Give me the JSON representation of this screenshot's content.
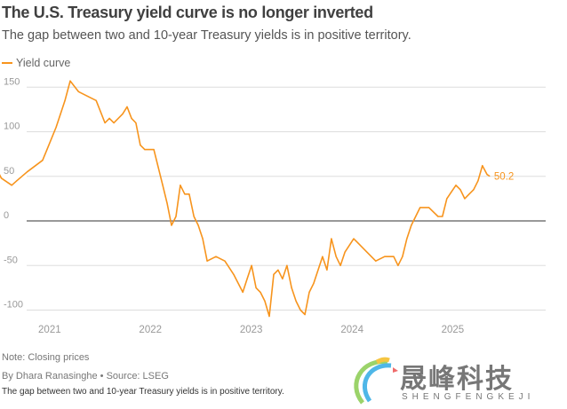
{
  "header": {
    "title": "The U.S. Treasury yield curve is no longer inverted",
    "subtitle": "The gap between two and 10-year Treasury yields is in positive territory."
  },
  "footer": {
    "note": "Note: Closing prices",
    "byline": "By Dhara Ranasinghe  • Source: LSEG",
    "caption": "The gap between two and 10-year Treasury yields is in positive territory."
  },
  "watermark": {
    "text": "晟峰科技",
    "sub": "SHENGFENGKEJI"
  },
  "colors": {
    "series": "#f7941d",
    "grid": "#dddddd",
    "zero_line": "#333333"
  },
  "chart_data": {
    "type": "line",
    "title": "The U.S. Treasury yield curve is no longer inverted",
    "xlabel": "",
    "ylabel": "",
    "xlim": [
      "2020-05-01",
      "2025-05-20"
    ],
    "ylim": [
      -110,
      160
    ],
    "yticks": [
      -100,
      -50,
      0,
      50,
      100,
      150
    ],
    "yticklabels": [
      "-100",
      "-50",
      "0",
      "50",
      "100",
      "150"
    ],
    "xticks": [
      "2021-07-01",
      "2022-07-01",
      "2023-07-01",
      "2024-07-01",
      "2025-07-01"
    ],
    "xticklabels": [
      "2021",
      "2022",
      "2023",
      "2024",
      "2025"
    ],
    "grid": true,
    "legend": "top-left",
    "end_label": "50.2",
    "series": [
      {
        "name": "Yield curve",
        "points": [
          [
            "2020-05-05",
            50
          ],
          [
            "2020-06-02",
            58
          ],
          [
            "2020-06-05",
            68
          ],
          [
            "2020-07-08",
            48
          ],
          [
            "2020-08-15",
            40
          ],
          [
            "2020-09-02",
            45
          ],
          [
            "2020-10-10",
            55
          ],
          [
            "2020-12-05",
            68
          ],
          [
            "2020-12-21",
            80
          ],
          [
            "2021-01-23",
            105
          ],
          [
            "2021-02-08",
            120
          ],
          [
            "2021-02-24",
            135
          ],
          [
            "2021-03-15",
            157
          ],
          [
            "2021-04-14",
            145
          ],
          [
            "2021-05-16",
            140
          ],
          [
            "2021-06-17",
            135
          ],
          [
            "2021-07-19",
            110
          ],
          [
            "2021-08-04",
            115
          ],
          [
            "2021-08-20",
            110
          ],
          [
            "2021-09-21",
            120
          ],
          [
            "2021-10-07",
            128
          ],
          [
            "2021-10-23",
            115
          ],
          [
            "2021-11-08",
            110
          ],
          [
            "2021-11-24",
            85
          ],
          [
            "2021-12-10",
            80
          ],
          [
            "2022-01-12",
            80
          ],
          [
            "2022-01-28",
            60
          ],
          [
            "2022-02-13",
            40
          ],
          [
            "2022-03-01",
            20
          ],
          [
            "2022-03-17",
            -5
          ],
          [
            "2022-04-02",
            5
          ],
          [
            "2022-04-18",
            40
          ],
          [
            "2022-05-04",
            30
          ],
          [
            "2022-05-20",
            30
          ],
          [
            "2022-06-06",
            5
          ],
          [
            "2022-06-22",
            -5
          ],
          [
            "2022-07-08",
            -20
          ],
          [
            "2022-07-24",
            -45
          ],
          [
            "2022-08-25",
            -40
          ],
          [
            "2022-09-26",
            -45
          ],
          [
            "2022-10-28",
            -60
          ],
          [
            "2022-11-30",
            -80
          ],
          [
            "2022-12-16",
            -65
          ],
          [
            "2023-01-01",
            -50
          ],
          [
            "2023-01-17",
            -75
          ],
          [
            "2023-02-02",
            -80
          ],
          [
            "2023-02-18",
            -90
          ],
          [
            "2023-03-06",
            -107
          ],
          [
            "2023-03-22",
            -60
          ],
          [
            "2023-04-07",
            -55
          ],
          [
            "2023-04-23",
            -65
          ],
          [
            "2023-05-09",
            -50
          ],
          [
            "2023-05-26",
            -75
          ],
          [
            "2023-06-11",
            -90
          ],
          [
            "2023-06-27",
            -100
          ],
          [
            "2023-07-13",
            -105
          ],
          [
            "2023-07-29",
            -80
          ],
          [
            "2023-08-14",
            -70
          ],
          [
            "2023-09-15",
            -40
          ],
          [
            "2023-10-01",
            -55
          ],
          [
            "2023-10-17",
            -20
          ],
          [
            "2023-11-03",
            -40
          ],
          [
            "2023-11-19",
            -50
          ],
          [
            "2023-12-05",
            -35
          ],
          [
            "2024-01-06",
            -20
          ],
          [
            "2024-01-22",
            -25
          ],
          [
            "2024-02-23",
            -35
          ],
          [
            "2024-03-26",
            -45
          ],
          [
            "2024-04-27",
            -40
          ],
          [
            "2024-05-30",
            -40
          ],
          [
            "2024-06-15",
            -50
          ],
          [
            "2024-07-01",
            -40
          ],
          [
            "2024-07-17",
            -20
          ],
          [
            "2024-08-02",
            -5
          ],
          [
            "2024-09-03",
            15
          ],
          [
            "2024-10-05",
            15
          ],
          [
            "2024-11-07",
            5
          ],
          [
            "2024-11-23",
            5
          ],
          [
            "2024-12-09",
            25
          ],
          [
            "2025-01-11",
            40
          ],
          [
            "2025-01-27",
            35
          ],
          [
            "2025-02-12",
            25
          ],
          [
            "2025-02-28",
            30
          ],
          [
            "2025-03-16",
            35
          ],
          [
            "2025-04-01",
            45
          ],
          [
            "2025-04-17",
            62
          ],
          [
            "2025-05-04",
            52
          ],
          [
            "2025-05-13",
            50.2
          ]
        ]
      }
    ]
  }
}
